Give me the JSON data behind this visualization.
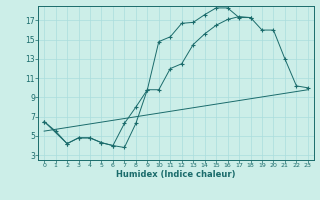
{
  "xlabel": "Humidex (Indice chaleur)",
  "bg_color": "#cceee8",
  "line_color": "#1a6b6b",
  "grid_color": "#aadddd",
  "xlim": [
    -0.5,
    23.5
  ],
  "ylim": [
    2.5,
    18.5
  ],
  "xticks": [
    0,
    1,
    2,
    3,
    4,
    5,
    6,
    7,
    8,
    9,
    10,
    11,
    12,
    13,
    14,
    15,
    16,
    17,
    18,
    19,
    20,
    21,
    22,
    23
  ],
  "yticks": [
    3,
    5,
    7,
    9,
    11,
    13,
    15,
    17
  ],
  "curve1_x": [
    0,
    1,
    2,
    3,
    4,
    5,
    6,
    7,
    8,
    9,
    10,
    11,
    12,
    13,
    14,
    15,
    16,
    17,
    18
  ],
  "curve1_y": [
    6.5,
    5.5,
    4.2,
    4.8,
    4.8,
    4.3,
    4.0,
    3.8,
    6.3,
    9.8,
    14.8,
    15.3,
    16.7,
    16.8,
    17.6,
    18.3,
    18.3,
    17.3,
    17.3
  ],
  "curve2_x": [
    0,
    2,
    3,
    4,
    5,
    6,
    7,
    8,
    9,
    10,
    11,
    12,
    13,
    14,
    15,
    16,
    17,
    18,
    19,
    20,
    21,
    22,
    23
  ],
  "curve2_y": [
    6.5,
    4.2,
    4.8,
    4.8,
    4.3,
    4.0,
    6.3,
    8.0,
    9.8,
    9.8,
    12.0,
    12.5,
    14.5,
    15.6,
    16.5,
    17.1,
    17.4,
    17.3,
    16.0,
    16.0,
    13.0,
    10.2,
    10.0
  ],
  "curve3_x": [
    0,
    23
  ],
  "curve3_y": [
    5.5,
    9.8
  ]
}
